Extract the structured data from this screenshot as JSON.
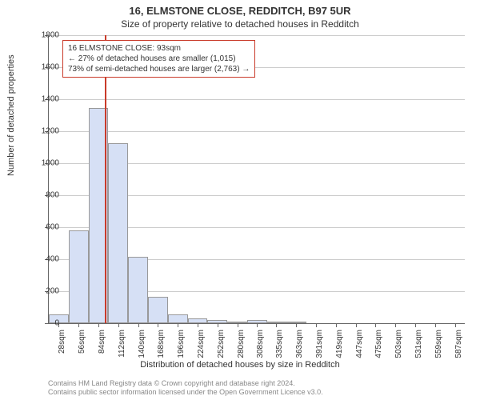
{
  "title_line1": "16, ELMSTONE CLOSE, REDDITCH, B97 5UR",
  "title_line2": "Size of property relative to detached houses in Redditch",
  "ylabel": "Number of detached properties",
  "xlabel": "Distribution of detached houses by size in Redditch",
  "footer_line1": "Contains HM Land Registry data © Crown copyright and database right 2024.",
  "footer_line2": "Contains public sector information licensed under the Open Government Licence v3.0.",
  "annotation": {
    "line1": "16 ELMSTONE CLOSE: 93sqm",
    "line2": "← 27% of detached houses are smaller (1,015)",
    "line3": "73% of semi-detached houses are larger (2,763) →",
    "border_color": "#c93b2a"
  },
  "chart": {
    "type": "histogram",
    "xlim": [
      14,
      601
    ],
    "ylim": [
      0,
      1800
    ],
    "ytick_step": 200,
    "yticks": [
      0,
      200,
      400,
      600,
      800,
      1000,
      1200,
      1400,
      1600,
      1800
    ],
    "xticks": [
      28,
      56,
      84,
      112,
      140,
      168,
      196,
      224,
      252,
      280,
      308,
      335,
      363,
      391,
      419,
      447,
      475,
      503,
      531,
      559,
      587
    ],
    "xtick_unit": "sqm",
    "bar_color": "#d6e0f5",
    "bar_border_color": "#999999",
    "grid_color": "#cccccc",
    "marker_color": "#c93b2a",
    "marker_x": 93,
    "bins": [
      {
        "start": 14,
        "end": 42,
        "count": 55
      },
      {
        "start": 42,
        "end": 70,
        "count": 580
      },
      {
        "start": 70,
        "end": 98,
        "count": 1345
      },
      {
        "start": 98,
        "end": 126,
        "count": 1125
      },
      {
        "start": 126,
        "end": 154,
        "count": 415
      },
      {
        "start": 154,
        "end": 182,
        "count": 165
      },
      {
        "start": 182,
        "end": 210,
        "count": 55
      },
      {
        "start": 210,
        "end": 238,
        "count": 30
      },
      {
        "start": 238,
        "end": 266,
        "count": 20
      },
      {
        "start": 266,
        "end": 294,
        "count": 5
      },
      {
        "start": 294,
        "end": 322,
        "count": 18
      },
      {
        "start": 322,
        "end": 350,
        "count": 2
      },
      {
        "start": 350,
        "end": 378,
        "count": 5
      },
      {
        "start": 378,
        "end": 406,
        "count": 0
      },
      {
        "start": 406,
        "end": 434,
        "count": 0
      },
      {
        "start": 434,
        "end": 462,
        "count": 0
      },
      {
        "start": 462,
        "end": 490,
        "count": 0
      },
      {
        "start": 490,
        "end": 518,
        "count": 0
      },
      {
        "start": 518,
        "end": 546,
        "count": 0
      },
      {
        "start": 546,
        "end": 574,
        "count": 0
      },
      {
        "start": 574,
        "end": 601,
        "count": 0
      }
    ]
  }
}
